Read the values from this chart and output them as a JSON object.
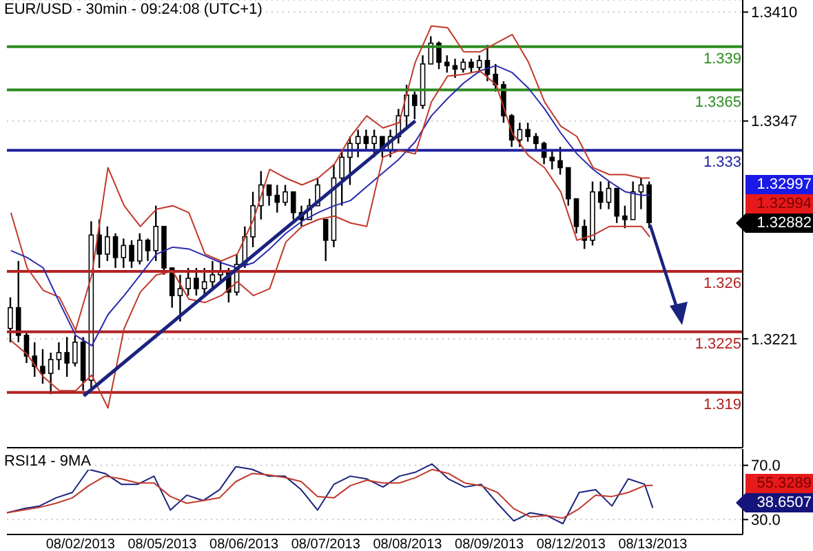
{
  "chart_data": [
    {
      "type": "candlestick",
      "title": "EUR/USD - 30min - 09:24:08 (UTC+1)",
      "color": "#000000",
      "categories": [
        null,
        null,
        null,
        null,
        null,
        null,
        null,
        null,
        null,
        null,
        null,
        null,
        null,
        null,
        null,
        null,
        null,
        null,
        null,
        null,
        null,
        null,
        null,
        null,
        null,
        null,
        null,
        null,
        null,
        null,
        null,
        null,
        null,
        null,
        null,
        null,
        null,
        null,
        null,
        null,
        null,
        null,
        null,
        null,
        null,
        null,
        null,
        null,
        null,
        null,
        null,
        null,
        null,
        null,
        null,
        null,
        null,
        null,
        null,
        null,
        null,
        null,
        null,
        null,
        null,
        null,
        null,
        null,
        null,
        null,
        null,
        null,
        null,
        null,
        null,
        null,
        null,
        null,
        null,
        null,
        null,
        null,
        null,
        null,
        null,
        null,
        null,
        null,
        null,
        null,
        null
      ],
      "ohlc": [
        [
          1.3227,
          1.3245,
          1.3219,
          1.3239
        ],
        [
          1.3239,
          1.3266,
          1.3219,
          1.3223
        ],
        [
          1.3223,
          1.3225,
          1.3207,
          1.3211
        ],
        [
          1.3211,
          1.3219,
          1.3199,
          1.3205
        ],
        [
          1.3205,
          1.3215,
          1.3195,
          1.3201
        ],
        [
          1.3201,
          1.3213,
          1.3189,
          1.3209
        ],
        [
          1.3209,
          1.3219,
          1.3203,
          1.3213
        ],
        [
          1.3213,
          1.3222,
          1.3199,
          1.3207
        ],
        [
          1.3207,
          1.3223,
          1.3205,
          1.3219
        ],
        [
          1.3219,
          1.3222,
          1.3191,
          1.3197
        ],
        [
          1.3197,
          1.3289,
          1.3191,
          1.3281
        ],
        [
          1.3281,
          1.329,
          1.3262,
          1.327
        ],
        [
          1.327,
          1.3286,
          1.3266,
          1.328
        ],
        [
          1.328,
          1.3282,
          1.3262,
          1.3268
        ],
        [
          1.3268,
          1.3279,
          1.3262,
          1.3275
        ],
        [
          1.3275,
          1.3278,
          1.3262,
          1.3266
        ],
        [
          1.3266,
          1.3282,
          1.3264,
          1.3278
        ],
        [
          1.3278,
          1.3279,
          1.3266,
          1.3272
        ],
        [
          1.3272,
          1.3298,
          1.3266,
          1.3286
        ],
        [
          1.3286,
          1.3286,
          1.3258,
          1.3262
        ],
        [
          1.3262,
          1.3262,
          1.3239,
          1.3246
        ],
        [
          1.3246,
          1.3258,
          1.3231,
          1.325
        ],
        [
          1.325,
          1.3262,
          1.3246,
          1.3256
        ],
        [
          1.3256,
          1.3262,
          1.3246,
          1.325
        ],
        [
          1.325,
          1.3262,
          1.3246,
          1.3254
        ],
        [
          1.3254,
          1.3266,
          1.325,
          1.3258
        ],
        [
          1.3258,
          1.3266,
          1.3254,
          1.326
        ],
        [
          1.326,
          1.3262,
          1.3242,
          1.3248
        ],
        [
          1.3248,
          1.327,
          1.3246,
          1.3264
        ],
        [
          1.3264,
          1.3286,
          1.3262,
          1.328
        ],
        [
          1.328,
          1.3306,
          1.3274,
          1.3298
        ],
        [
          1.3298,
          1.3318,
          1.329,
          1.331
        ],
        [
          1.331,
          1.331,
          1.3298,
          1.3304
        ],
        [
          1.3304,
          1.331,
          1.3294,
          1.33
        ],
        [
          1.33,
          1.331,
          1.3298,
          1.3306
        ],
        [
          1.3306,
          1.3306,
          1.329,
          1.3294
        ],
        [
          1.3294,
          1.3298,
          1.3286,
          1.329
        ],
        [
          1.329,
          1.3302,
          1.329,
          1.3298
        ],
        [
          1.3298,
          1.3314,
          1.3298,
          1.331
        ],
        [
          1.329,
          1.329,
          1.3266,
          1.3278
        ],
        [
          1.3278,
          1.3322,
          1.3274,
          1.3314
        ],
        [
          1.3314,
          1.333,
          1.3298,
          1.3326
        ],
        [
          1.3326,
          1.3338,
          1.331,
          1.3334
        ],
        [
          1.3334,
          1.3342,
          1.3326,
          1.3338
        ],
        [
          1.3338,
          1.3342,
          1.333,
          1.3334
        ],
        [
          1.3334,
          1.3342,
          1.3326,
          1.3338
        ],
        [
          1.3338,
          1.3338,
          1.3326,
          1.333
        ],
        [
          1.333,
          1.3342,
          1.3326,
          1.3338
        ],
        [
          1.3338,
          1.3354,
          1.3334,
          1.335
        ],
        [
          1.335,
          1.3368,
          1.3343,
          1.3362
        ],
        [
          1.3362,
          1.3364,
          1.3348,
          1.3356
        ],
        [
          1.3356,
          1.3385,
          1.3354,
          1.338
        ],
        [
          1.338,
          1.3396,
          1.338,
          1.3392
        ],
        [
          1.3392,
          1.3393,
          1.3377,
          1.3381
        ],
        [
          1.3381,
          1.3385,
          1.3375,
          1.3379
        ],
        [
          1.3379,
          1.3383,
          1.3372,
          1.3377
        ],
        [
          1.3377,
          1.3383,
          1.3375,
          1.3381
        ],
        [
          1.3381,
          1.3383,
          1.3375,
          1.3378
        ],
        [
          1.3378,
          1.3385,
          1.3375,
          1.3382
        ],
        [
          1.3382,
          1.3391,
          1.337,
          1.3374
        ],
        [
          1.3374,
          1.338,
          1.3364,
          1.3368
        ],
        [
          1.3368,
          1.337,
          1.3346,
          1.335
        ],
        [
          1.335,
          1.3351,
          1.3332,
          1.3336
        ],
        [
          1.3336,
          1.3346,
          1.3332,
          1.3342
        ],
        [
          1.3342,
          1.3346,
          1.3335,
          1.3338
        ],
        [
          1.3338,
          1.334,
          1.333,
          1.3334
        ],
        [
          1.3334,
          1.3335,
          1.3322,
          1.3326
        ],
        [
          1.3326,
          1.333,
          1.3319,
          1.3324
        ],
        [
          1.3324,
          1.3332,
          1.3316,
          1.332
        ],
        [
          1.332,
          1.332,
          1.3298,
          1.3302
        ],
        [
          1.3302,
          1.3302,
          1.3282,
          1.3286
        ],
        [
          1.3286,
          1.329,
          1.3273,
          1.3278
        ],
        [
          1.3278,
          1.3312,
          1.3275,
          1.3306
        ],
        [
          1.3306,
          1.3312,
          1.3296,
          1.33
        ],
        [
          1.33,
          1.3312,
          1.3296,
          1.3308
        ],
        [
          1.3308,
          1.3308,
          1.3288,
          1.3292
        ],
        [
          1.3292,
          1.3298,
          1.3285,
          1.329
        ],
        [
          1.329,
          1.3312,
          1.329,
          1.3306
        ],
        [
          1.3306,
          1.3314,
          1.3296,
          1.331
        ],
        [
          1.331,
          1.3312,
          1.3285,
          1.32882
        ],
        null,
        null,
        null,
        null,
        null,
        null,
        null,
        null,
        null,
        null,
        null
      ],
      "series": [
        {
          "type": "line",
          "color": "#c0392b",
          "values": [
            1.3294,
            null,
            1.3262,
            null,
            1.3249,
            null,
            1.3245,
            null,
            1.3226,
            null,
            1.3258,
            null,
            1.332,
            null,
            1.3298,
            null,
            1.3286,
            null,
            1.3296,
            null,
            1.3298,
            null,
            1.3294,
            null,
            1.327,
            null,
            1.3266,
            null,
            1.327,
            null,
            1.329,
            null,
            1.3319,
            null,
            1.3314,
            null,
            1.331,
            null,
            1.3314,
            null,
            1.3322,
            null,
            1.3338,
            null,
            1.335,
            null,
            1.3343,
            null,
            1.3346,
            null,
            1.3381,
            null,
            1.3402,
            null,
            1.3401,
            null,
            1.3387,
            null,
            1.3387,
            null,
            1.3392,
            null,
            1.3397,
            null,
            1.3381,
            null,
            1.3358,
            null,
            1.3344,
            null,
            1.3338,
            null,
            1.332,
            null,
            1.3316,
            null,
            1.3316,
            null,
            1.3314,
            1.3314,
            null,
            null,
            null,
            null,
            null,
            null,
            null,
            null,
            null,
            null,
            null
          ]
        },
        {
          "type": "line",
          "color": "#2a2ab0",
          "values": [
            1.3272,
            null,
            1.3268,
            null,
            1.3262,
            null,
            1.3242,
            null,
            1.3223,
            null,
            1.3217,
            null,
            1.3235,
            null,
            1.3246,
            null,
            1.3258,
            null,
            1.327,
            null,
            1.3274,
            null,
            1.3273,
            null,
            1.3269,
            null,
            1.3265,
            null,
            1.3262,
            null,
            1.3265,
            null,
            1.3273,
            null,
            1.3282,
            null,
            1.3289,
            null,
            1.3294,
            null,
            1.3298,
            null,
            1.3301,
            null,
            1.3309,
            null,
            1.3317,
            null,
            1.3325,
            null,
            1.3335,
            null,
            1.335,
            null,
            1.336,
            null,
            1.3369,
            null,
            1.3376,
            null,
            1.3379,
            null,
            1.3375,
            null,
            1.3366,
            null,
            1.3354,
            null,
            1.334,
            null,
            1.3328,
            null,
            1.3319,
            null,
            1.3312,
            null,
            1.3306,
            null,
            1.3304,
            1.3304,
            null,
            null,
            null,
            null,
            null,
            null,
            null,
            null,
            null,
            null,
            null
          ]
        },
        {
          "type": "line",
          "color": "#c0392b",
          "values": [
            1.322,
            null,
            1.3212,
            null,
            1.3199,
            null,
            1.3191,
            null,
            1.3191,
            null,
            1.32,
            null,
            1.3181,
            null,
            1.3227,
            null,
            1.3248,
            null,
            1.3258,
            null,
            1.326,
            null,
            1.3244,
            null,
            1.3242,
            null,
            1.3246,
            null,
            1.3254,
            null,
            1.3246,
            null,
            1.325,
            null,
            1.3277,
            null,
            1.3286,
            null,
            1.329,
            null,
            1.3292,
            null,
            1.3288,
            null,
            1.3286,
            null,
            1.3326,
            null,
            1.333,
            null,
            1.3328,
            null,
            1.3358,
            null,
            1.3373,
            null,
            1.3374,
            null,
            1.3376,
            null,
            1.3368,
            null,
            1.334,
            null,
            1.3327,
            null,
            1.332,
            null,
            1.3306,
            null,
            1.3278,
            null,
            1.3281,
            null,
            1.3286,
            null,
            1.3286,
            null,
            1.3286,
            1.328,
            null,
            null,
            null,
            null,
            null,
            null,
            null,
            null,
            null,
            null,
            null
          ]
        },
        {
          "type": "line",
          "color": "#1a237e",
          "values": [
            null,
            null,
            null,
            null,
            null,
            null,
            null,
            null,
            null,
            1.3188,
            null,
            null,
            null,
            null,
            null,
            null,
            null,
            null,
            null,
            null,
            null,
            null,
            null,
            null,
            null,
            null,
            null,
            null,
            null,
            null,
            null,
            null,
            null,
            null,
            null,
            null,
            null,
            null,
            null,
            null,
            null,
            null,
            null,
            null,
            null,
            null,
            null,
            null,
            null,
            null,
            1.3347,
            null,
            null,
            null,
            null,
            null,
            null,
            null,
            null,
            null,
            null,
            null,
            null,
            null,
            null,
            null,
            null,
            null,
            null,
            null,
            null,
            null,
            null,
            null,
            null,
            null,
            null,
            null,
            null,
            null,
            null,
            null,
            null,
            null,
            null,
            null,
            null,
            null,
            null,
            null,
            null
          ]
        }
      ],
      "ylim": [
        1.3158,
        1.3417
      ],
      "yticks": [
        {
          "value": 1.341,
          "label": "1.3410"
        },
        {
          "value": 1.3347,
          "label": "1.3347"
        },
        {
          "value": 1.3221,
          "label": "1.3221"
        }
      ],
      "grid": "y",
      "marker": "none",
      "ref_lines": [
        {
          "axis": "y",
          "value": 1.339,
          "label": "1.339",
          "color": "#2e8b22"
        },
        {
          "axis": "y",
          "value": 1.3365,
          "label": "1.3365",
          "color": "#2e8b22"
        },
        {
          "axis": "y",
          "value": 1.333,
          "label": "1.333",
          "color": "#2020a0"
        },
        {
          "axis": "y",
          "value": 1.326,
          "label": "1.326",
          "color": "#b22222"
        },
        {
          "axis": "y",
          "value": 1.3225,
          "label": "1.3225",
          "color": "#b22222"
        },
        {
          "axis": "y",
          "value": 1.319,
          "label": "1.319",
          "color": "#b22222"
        }
      ],
      "annotations": [
        "1.32997",
        "1.32994",
        "1.32882"
      ]
    },
    {
      "type": "line",
      "title": "RSI14 - 9MA",
      "categories": [
        null,
        null,
        null,
        null,
        null,
        null,
        null,
        null,
        null,
        "08/02/2013",
        null,
        null,
        null,
        null,
        null,
        null,
        null,
        null,
        null,
        "08/05/2013",
        null,
        null,
        null,
        null,
        null,
        null,
        null,
        null,
        null,
        "08/06/2013",
        null,
        null,
        null,
        null,
        null,
        null,
        null,
        null,
        null,
        "08/07/2013",
        null,
        null,
        null,
        null,
        null,
        null,
        null,
        null,
        null,
        "08/08/2013",
        null,
        null,
        null,
        null,
        null,
        null,
        null,
        null,
        null,
        "08/09/2013",
        null,
        null,
        null,
        null,
        null,
        null,
        null,
        null,
        null,
        "08/12/2013",
        null,
        null,
        null,
        null,
        null,
        null,
        null,
        null,
        null,
        "08/13/2013",
        null,
        null,
        null,
        null,
        null,
        null,
        null,
        null,
        null,
        null,
        null
      ],
      "series": [
        {
          "color": "#1a237e",
          "values": [
            35,
            null,
            38,
            null,
            40,
            null,
            46,
            null,
            50,
            null,
            67,
            null,
            64,
            null,
            56,
            null,
            56,
            null,
            62,
            null,
            37,
            null,
            48,
            null,
            44,
            null,
            52,
            null,
            69,
            null,
            67,
            null,
            62,
            null,
            62,
            null,
            52,
            null,
            37,
            null,
            56,
            null,
            62,
            null,
            60,
            null,
            54,
            null,
            62,
            null,
            65,
            null,
            71,
            null,
            60,
            null,
            54,
            null,
            56,
            null,
            42,
            null,
            29,
            null,
            35,
            null,
            33,
            null,
            27,
            null,
            50,
            null,
            52,
            null,
            40,
            null,
            60,
            null,
            56,
            38.6507,
            null,
            null,
            null,
            null,
            null,
            null,
            null,
            null,
            null,
            null,
            null
          ]
        },
        {
          "color": "#c0392b",
          "values": [
            35,
            null,
            37,
            null,
            39,
            null,
            42,
            null,
            46,
            null,
            55,
            null,
            62,
            null,
            60,
            null,
            57,
            null,
            57,
            null,
            47,
            null,
            42,
            null,
            44,
            null,
            46,
            null,
            58,
            null,
            64,
            null,
            63,
            null,
            61,
            null,
            58,
            null,
            47,
            null,
            46,
            null,
            55,
            null,
            59,
            null,
            57,
            null,
            57,
            null,
            61,
            null,
            67,
            null,
            64,
            null,
            57,
            null,
            55,
            null,
            50,
            null,
            38,
            null,
            32,
            null,
            33,
            null,
            31,
            null,
            38,
            null,
            48,
            null,
            47,
            null,
            50,
            null,
            55,
            55.3289,
            null,
            null,
            null,
            null,
            null,
            null,
            null,
            null,
            null,
            null,
            null
          ]
        }
      ],
      "ylim": [
        19,
        82
      ],
      "yticks": [
        {
          "value": 70,
          "label": "70.0"
        },
        {
          "value": 30,
          "label": "30.0"
        }
      ],
      "grid": "y",
      "marker": "none",
      "annotations": [
        "55.3289",
        "38.6507"
      ]
    }
  ]
}
